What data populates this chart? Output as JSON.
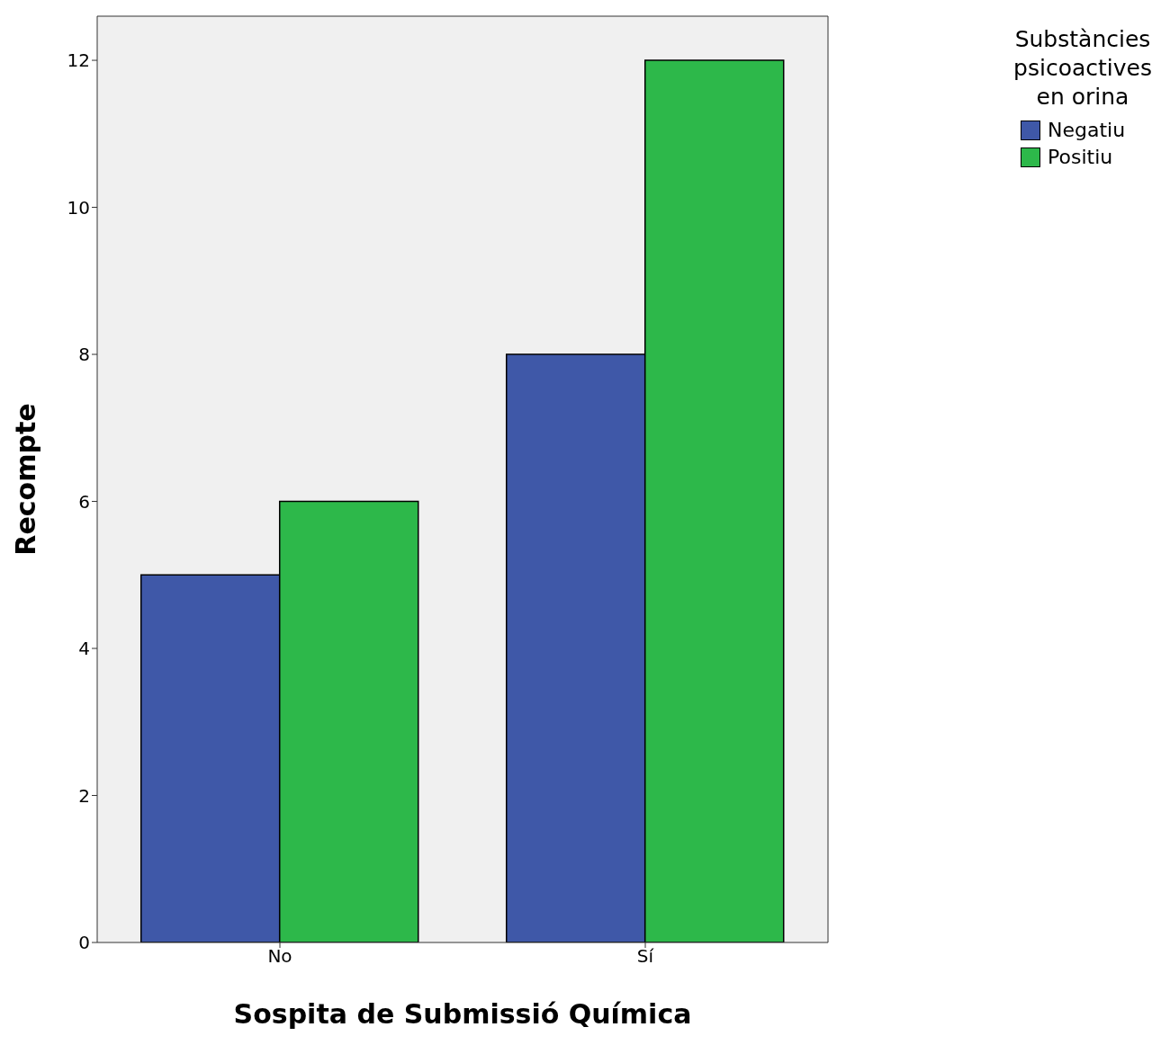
{
  "chart_data": {
    "type": "bar",
    "xlabel": "Sospita de Submissió Química",
    "ylabel": "Recompte",
    "legend_title": "Substàncies psicoactives en orina",
    "categories": [
      "No",
      "Sí"
    ],
    "series": [
      {
        "name": "Negatiu",
        "color": "#3f58a8",
        "values": [
          5,
          8
        ]
      },
      {
        "name": "Positiu",
        "color": "#2db84a",
        "values": [
          6,
          12
        ]
      }
    ],
    "ylim": [
      0,
      12.6
    ],
    "yticks": [
      0,
      2,
      4,
      6,
      8,
      10,
      12
    ],
    "grid": false,
    "legend": "top right"
  }
}
